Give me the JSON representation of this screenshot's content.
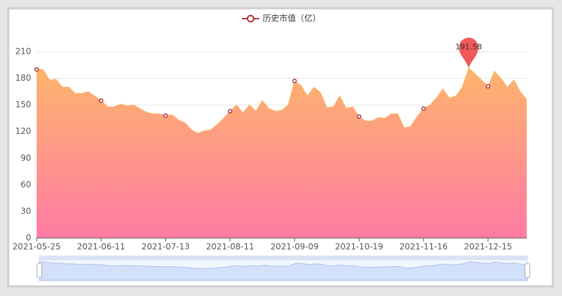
{
  "chart_data": {
    "type": "area",
    "categories": [
      "2021-05-25",
      null,
      null,
      null,
      null,
      null,
      null,
      null,
      null,
      null,
      "2021-06-11",
      null,
      null,
      null,
      null,
      null,
      null,
      null,
      null,
      null,
      "2021-07-13",
      null,
      null,
      null,
      null,
      null,
      null,
      null,
      null,
      null,
      "2021-08-11",
      null,
      null,
      null,
      null,
      null,
      null,
      null,
      null,
      null,
      "2021-09-09",
      null,
      null,
      null,
      null,
      null,
      null,
      null,
      null,
      null,
      "2021-10-19",
      null,
      null,
      null,
      null,
      null,
      null,
      null,
      null,
      null,
      "2021-11-16",
      null,
      null,
      null,
      null,
      null,
      null,
      null,
      null,
      null,
      "2021-12-15",
      null,
      null,
      null,
      null,
      null,
      null
    ],
    "series": [
      {
        "name": "历史市值（亿）",
        "color": "#a8343a",
        "area_colors": [
          "#fdb46c",
          "#ff7ba4"
        ],
        "values": [
          190,
          190,
          178,
          179,
          170,
          170,
          163,
          163,
          165,
          160,
          155,
          148,
          148,
          151,
          149,
          150,
          146,
          142,
          140,
          140,
          138,
          139,
          133,
          130,
          122,
          118,
          121,
          122,
          128,
          135,
          143,
          150,
          141,
          150,
          143,
          155,
          146,
          143,
          144,
          150,
          177,
          172,
          160,
          170,
          164,
          147,
          148,
          160,
          146,
          148,
          137,
          132,
          132,
          136,
          135,
          140,
          140,
          124,
          126,
          137,
          146,
          150,
          158,
          168,
          158,
          160,
          170,
          191.58,
          185,
          178,
          171,
          188,
          180,
          170,
          178,
          165,
          156
        ]
      }
    ],
    "ylim": [
      0,
      210
    ],
    "yticks": [
      0,
      30,
      60,
      90,
      120,
      150,
      180,
      210
    ],
    "grid": true,
    "mark_point": "max",
    "mark_point_color": "#f0595a",
    "legend": "top"
  }
}
